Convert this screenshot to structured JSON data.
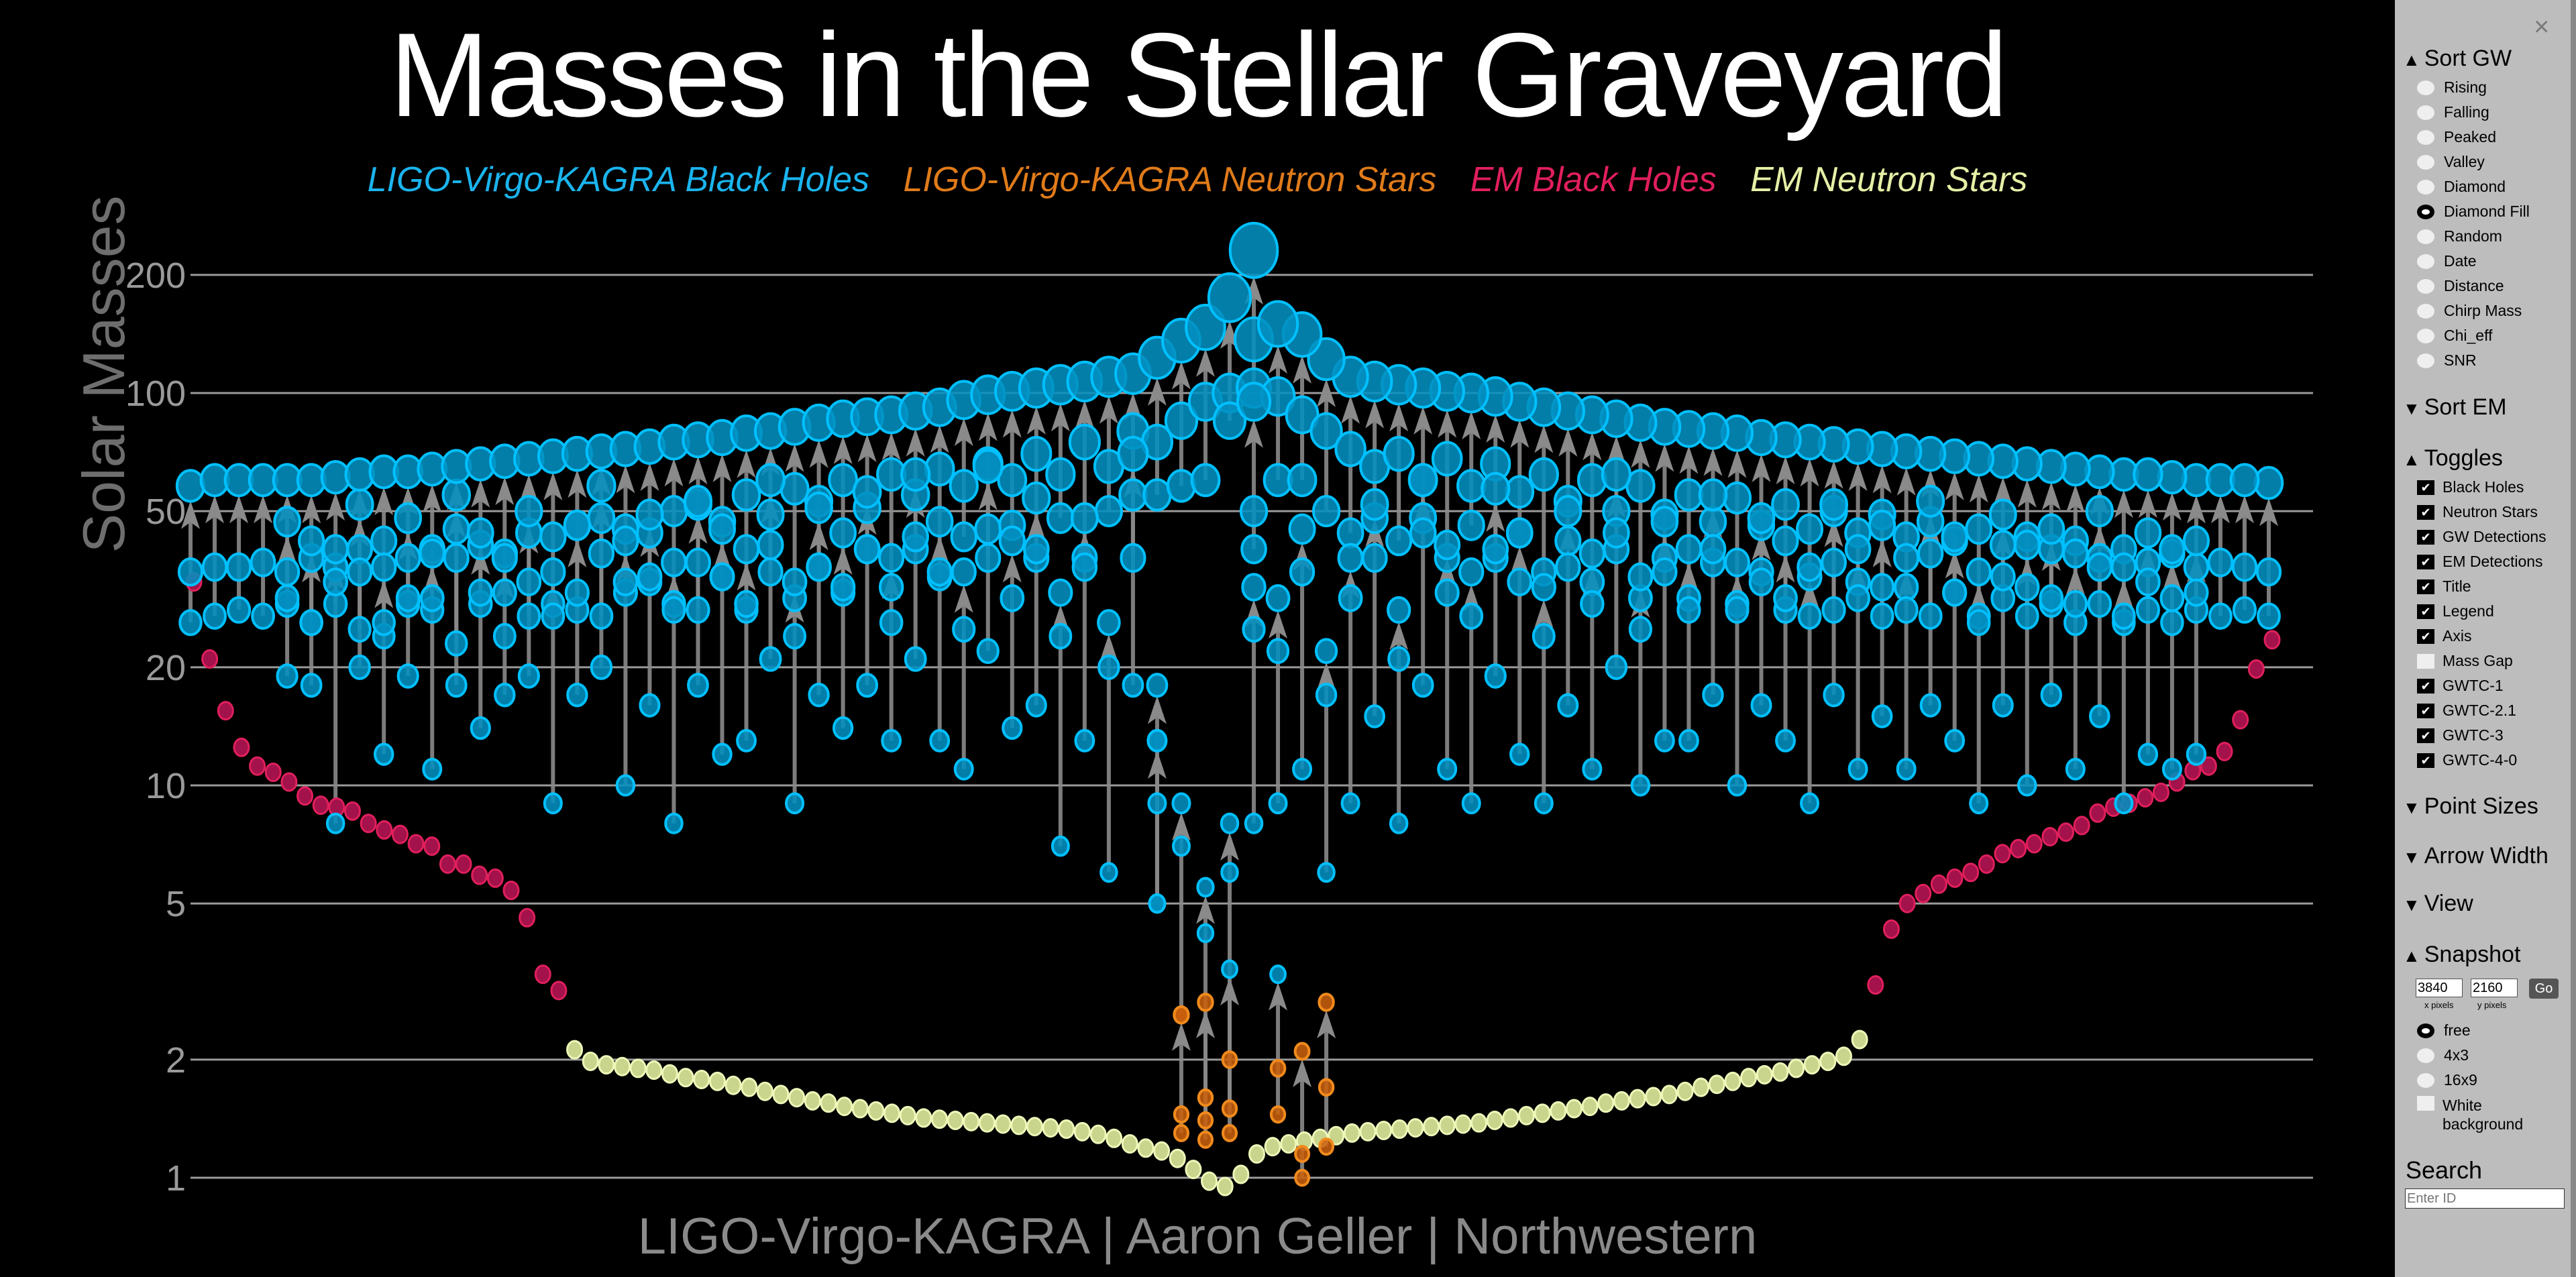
{
  "title": "Masses in the Stellar Graveyard",
  "legend": [
    {
      "label": "LIGO-Virgo-KAGRA Black Holes",
      "color": "#1ab4ee"
    },
    {
      "label": "LIGO-Virgo-KAGRA Neutron Stars",
      "color": "#e07b1a"
    },
    {
      "label": "EM Black Holes",
      "color": "#e01f5c"
    },
    {
      "label": "EM Neutron Stars",
      "color": "#e6efa6"
    }
  ],
  "footer": "LIGO-Virgo-KAGRA | Aaron Geller | Northwestern",
  "colors": {
    "gw_bh_fill": "#028fc0",
    "gw_bh_stroke": "#00c0ff",
    "gw_ns_fill": "#c8600e",
    "gw_ns_stroke": "#f08a1c",
    "em_bh_fill": "#a3124a",
    "em_bh_stroke": "#e01f5c",
    "em_ns_fill": "#c9d48c",
    "em_ns_stroke": "#eef6b8",
    "arrow": "#8a8a8a",
    "grid": "#9a9a9a"
  },
  "chart_data": {
    "type": "scatter",
    "ylabel": "Solar Masses",
    "yscale": "log",
    "ylim": [
      0.9,
      260
    ],
    "yticks": [
      1,
      2,
      5,
      10,
      20,
      50,
      100,
      200
    ],
    "grid": true,
    "legend_position": "top",
    "gw_columns_note_format": "each column lists events as [final_mass, m1, m2]",
    "gw_columns": [
      [
        [
          58,
          35,
          26
        ]
      ],
      [
        [
          60,
          36,
          27
        ]
      ],
      [
        [
          60,
          36,
          28
        ]
      ],
      [
        [
          60,
          37,
          27
        ]
      ],
      [
        [
          60,
          35,
          29
        ],
        [
          47,
          30,
          19
        ]
      ],
      [
        [
          60,
          38,
          26
        ],
        [
          42,
          26,
          18
        ]
      ],
      [
        [
          61,
          36,
          29
        ],
        [
          40,
          33,
          8
        ]
      ],
      [
        [
          62,
          40,
          25
        ],
        [
          52,
          35,
          20
        ]
      ],
      [
        [
          63,
          42,
          24
        ],
        [
          36,
          26,
          12
        ]
      ],
      [
        [
          63,
          38,
          29
        ],
        [
          48,
          30,
          19
        ]
      ],
      [
        [
          64,
          40,
          28
        ],
        [
          39,
          30,
          11
        ]
      ],
      [
        [
          65,
          45,
          23
        ],
        [
          55,
          38,
          18
        ]
      ],
      [
        [
          66,
          41,
          29
        ],
        [
          44,
          31,
          14
        ]
      ],
      [
        [
          67,
          39,
          31
        ],
        [
          38,
          24,
          17
        ]
      ],
      [
        [
          68,
          44,
          27
        ],
        [
          50,
          33,
          19
        ]
      ],
      [
        [
          69,
          43,
          29
        ],
        [
          35,
          27,
          9
        ]
      ],
      [
        [
          70,
          46,
          28
        ],
        [
          46,
          31,
          17
        ]
      ],
      [
        [
          71,
          48,
          27
        ],
        [
          58,
          39,
          20
        ]
      ],
      [
        [
          72,
          45,
          31
        ],
        [
          42,
          33,
          10
        ]
      ],
      [
        [
          73,
          44,
          33
        ],
        [
          49,
          34,
          16
        ]
      ],
      [
        [
          75,
          50,
          29
        ],
        [
          37,
          28,
          8
        ]
      ],
      [
        [
          76,
          52,
          28
        ],
        [
          53,
          37,
          18
        ]
      ],
      [
        [
          77,
          47,
          34
        ],
        [
          45,
          34,
          12
        ]
      ],
      [
        [
          79,
          55,
          28
        ],
        [
          40,
          29,
          13
        ]
      ],
      [
        [
          80,
          49,
          35
        ],
        [
          60,
          41,
          21
        ]
      ],
      [
        [
          82,
          57,
          30
        ],
        [
          33,
          24,
          9
        ]
      ],
      [
        [
          84,
          53,
          36
        ],
        [
          51,
          36,
          17
        ]
      ],
      [
        [
          86,
          60,
          31
        ],
        [
          44,
          32,
          14
        ]
      ],
      [
        [
          87,
          51,
          40
        ],
        [
          56,
          40,
          18
        ]
      ],
      [
        [
          88,
          62,
          32
        ],
        [
          38,
          26,
          13
        ]
      ],
      [
        [
          90,
          55,
          40
        ],
        [
          62,
          43,
          21
        ]
      ],
      [
        [
          92,
          64,
          34
        ],
        [
          47,
          35,
          13
        ]
      ],
      [
        [
          96,
          58,
          43
        ],
        [
          35,
          25,
          11
        ]
      ],
      [
        [
          99,
          66,
          38
        ],
        [
          65,
          45,
          22
        ]
      ],
      [
        [
          101,
          60,
          46
        ],
        [
          42,
          30,
          14
        ]
      ],
      [
        [
          103,
          70,
          38
        ],
        [
          54,
          40,
          16
        ]
      ],
      [
        [
          105,
          62,
          48
        ],
        [
          31,
          24,
          7
        ]
      ],
      [
        [
          107,
          75,
          38
        ],
        [
          48,
          36,
          13
        ]
      ],
      [
        [
          110,
          65,
          50
        ],
        [
          26,
          20,
          6
        ]
      ],
      [
        [
          112,
          80,
          38
        ],
        [
          70,
          55,
          18
        ]
      ],
      [
        [
          123,
          75,
          55
        ],
        [
          18,
          13,
          5
        ],
        [
          13,
          9,
          5
        ]
      ],
      [
        [
          136,
          85,
          58
        ],
        [
          9,
          7,
          2.6
        ],
        [
          2.6,
          1.45,
          1.3
        ]
      ],
      [
        [
          147,
          95,
          60
        ],
        [
          5.5,
          4.2,
          1.4
        ],
        [
          2.8,
          1.6,
          1.25
        ]
      ],
      [
        [
          175,
          100,
          85
        ],
        [
          8,
          6,
          1.3
        ],
        [
          3.4,
          2.0,
          1.5
        ]
      ],
      [
        [
          231,
          137,
          103
        ],
        [
          95,
          50,
          40
        ],
        [
          32,
          25,
          8
        ]
      ],
      [
        [
          150,
          98,
          60
        ],
        [
          30,
          22,
          9
        ],
        [
          3.3,
          1.9,
          1.45
        ]
      ],
      [
        [
          141,
          88,
          60
        ],
        [
          45,
          35,
          11
        ],
        [
          2.1,
          1.15,
          1.0
        ]
      ],
      [
        [
          122,
          80,
          50
        ],
        [
          22,
          17,
          6
        ],
        [
          2.8,
          1.7,
          1.2
        ]
      ],
      [
        [
          110,
          72,
          44
        ],
        [
          38,
          30,
          9
        ]
      ],
      [
        [
          107,
          65,
          48
        ],
        [
          52,
          38,
          15
        ]
      ],
      [
        [
          105,
          70,
          42
        ],
        [
          28,
          21,
          8
        ]
      ],
      [
        [
          103,
          60,
          48
        ],
        [
          60,
          44,
          18
        ]
      ],
      [
        [
          101,
          68,
          38
        ],
        [
          41,
          31,
          11
        ]
      ],
      [
        [
          100,
          58,
          46
        ],
        [
          35,
          27,
          9
        ]
      ],
      [
        [
          98,
          66,
          38
        ],
        [
          57,
          40,
          19
        ]
      ],
      [
        [
          95,
          56,
          44
        ],
        [
          44,
          33,
          12
        ]
      ],
      [
        [
          92,
          62,
          35
        ],
        [
          32,
          24,
          9
        ]
      ],
      [
        [
          90,
          53,
          42
        ],
        [
          50,
          36,
          16
        ]
      ],
      [
        [
          88,
          60,
          33
        ],
        [
          39,
          29,
          11
        ]
      ],
      [
        [
          86,
          50,
          40
        ],
        [
          62,
          44,
          20
        ]
      ],
      [
        [
          84,
          58,
          30
        ],
        [
          34,
          25,
          10
        ]
      ],
      [
        [
          82,
          49,
          38
        ],
        [
          47,
          35,
          13
        ]
      ],
      [
        [
          81,
          55,
          30
        ],
        [
          40,
          28,
          13
        ]
      ],
      [
        [
          80,
          47,
          37
        ],
        [
          55,
          40,
          17
        ]
      ],
      [
        [
          79,
          54,
          29
        ],
        [
          37,
          28,
          10
        ]
      ],
      [
        [
          77,
          46,
          35
        ],
        [
          48,
          33,
          16
        ]
      ],
      [
        [
          76,
          52,
          28
        ],
        [
          42,
          30,
          13
        ]
      ],
      [
        [
          75,
          45,
          34
        ],
        [
          36,
          27,
          9
        ]
      ],
      [
        [
          74,
          50,
          28
        ],
        [
          52,
          37,
          17
        ]
      ],
      [
        [
          73,
          44,
          33
        ],
        [
          40,
          30,
          11
        ]
      ],
      [
        [
          72,
          49,
          27
        ],
        [
          46,
          32,
          15
        ]
      ],
      [
        [
          71,
          43,
          32
        ],
        [
          38,
          28,
          11
        ]
      ],
      [
        [
          70,
          47,
          27
        ],
        [
          53,
          39,
          16
        ]
      ],
      [
        [
          69,
          42,
          31
        ],
        [
          43,
          31,
          13
        ]
      ],
      [
        [
          68,
          45,
          27
        ],
        [
          35,
          26,
          9
        ]
      ],
      [
        [
          67,
          41,
          30
        ],
        [
          49,
          34,
          16
        ]
      ],
      [
        [
          66,
          43,
          27
        ],
        [
          41,
          32,
          10
        ]
      ],
      [
        [
          65,
          40,
          29
        ],
        [
          45,
          30,
          17
        ]
      ],
      [
        [
          64,
          42,
          26
        ],
        [
          39,
          29,
          11
        ]
      ],
      [
        [
          63,
          38,
          29
        ],
        [
          50,
          36,
          15
        ]
      ],
      [
        [
          62,
          40,
          26
        ],
        [
          36,
          27,
          9
        ]
      ],
      [
        [
          62,
          37,
          28
        ],
        [
          44,
          33,
          12
        ]
      ],
      [
        [
          61,
          39,
          26
        ],
        [
          40,
          30,
          11
        ]
      ],
      [
        [
          60,
          36,
          28
        ],
        [
          42,
          31,
          12
        ]
      ],
      [
        [
          60,
          37,
          27
        ]
      ],
      [
        [
          60,
          36,
          28
        ]
      ],
      [
        [
          59,
          35,
          27
        ]
      ]
    ],
    "em_masses": [
      33,
      21,
      15.5,
      12.5,
      11.2,
      10.8,
      10.2,
      9.4,
      8.9,
      8.8,
      8.6,
      8.0,
      7.7,
      7.5,
      7.1,
      7.0,
      6.3,
      6.3,
      5.9,
      5.8,
      5.4,
      4.6,
      3.3,
      3.0,
      2.12,
      1.98,
      1.94,
      1.92,
      1.9,
      1.88,
      1.84,
      1.8,
      1.78,
      1.76,
      1.72,
      1.7,
      1.66,
      1.63,
      1.6,
      1.57,
      1.55,
      1.52,
      1.5,
      1.48,
      1.46,
      1.44,
      1.42,
      1.41,
      1.4,
      1.39,
      1.38,
      1.37,
      1.36,
      1.35,
      1.34,
      1.33,
      1.31,
      1.29,
      1.26,
      1.22,
      1.19,
      1.17,
      1.12,
      1.05,
      0.98,
      0.95,
      1.02,
      1.15,
      1.2,
      1.22,
      1.24,
      1.26,
      1.28,
      1.3,
      1.31,
      1.32,
      1.33,
      1.34,
      1.35,
      1.36,
      1.37,
      1.38,
      1.4,
      1.42,
      1.44,
      1.46,
      1.48,
      1.5,
      1.52,
      1.55,
      1.57,
      1.59,
      1.61,
      1.63,
      1.66,
      1.7,
      1.73,
      1.76,
      1.8,
      1.83,
      1.86,
      1.9,
      1.94,
      1.98,
      2.04,
      2.25,
      3.1,
      4.3,
      5.0,
      5.3,
      5.6,
      5.8,
      6.0,
      6.3,
      6.7,
      6.9,
      7.1,
      7.4,
      7.6,
      7.9,
      8.5,
      8.8,
      9.0,
      9.3,
      9.6,
      10.2,
      10.9,
      11.2,
      12.2,
      14.7,
      19.8,
      23.5
    ]
  },
  "sidebar": {
    "close": "×",
    "sort_gw": {
      "label": "Sort GW",
      "expanded": true,
      "selected": "Diamond Fill",
      "options": [
        "Rising",
        "Falling",
        "Peaked",
        "Valley",
        "Diamond",
        "Diamond Fill",
        "Random",
        "Date",
        "Distance",
        "Chirp Mass",
        "Chi_eff",
        "SNR"
      ]
    },
    "sort_em": {
      "label": "Sort EM",
      "expanded": false
    },
    "toggles": {
      "label": "Toggles",
      "expanded": true,
      "items": [
        {
          "label": "Black Holes",
          "checked": true
        },
        {
          "label": "Neutron Stars",
          "checked": true
        },
        {
          "label": "GW Detections",
          "checked": true
        },
        {
          "label": "EM Detections",
          "checked": true
        },
        {
          "label": "Title",
          "checked": true
        },
        {
          "label": "Legend",
          "checked": true
        },
        {
          "label": "Axis",
          "checked": true
        },
        {
          "label": "Mass Gap",
          "checked": false
        },
        {
          "label": "GWTC-1",
          "checked": true
        },
        {
          "label": "GWTC-2.1",
          "checked": true
        },
        {
          "label": "GWTC-3",
          "checked": true
        },
        {
          "label": "GWTC-4-0",
          "checked": true
        }
      ]
    },
    "point_sizes": {
      "label": "Point Sizes"
    },
    "arrow_width": {
      "label": "Arrow Width"
    },
    "view": {
      "label": "View"
    },
    "snapshot": {
      "label": "Snapshot",
      "x_value": "3840",
      "y_value": "2160",
      "x_label": "x pixels",
      "y_label": "y pixels",
      "go": "Go",
      "aspect_selected": "free",
      "aspects": [
        "free",
        "4x3",
        "16x9"
      ],
      "white_bg_line1": "White",
      "white_bg_line2": "background",
      "white_bg_checked": false
    },
    "search": {
      "label": "Search",
      "placeholder": "Enter ID"
    },
    "arrow_up": "▲",
    "arrow_down": "▼"
  }
}
